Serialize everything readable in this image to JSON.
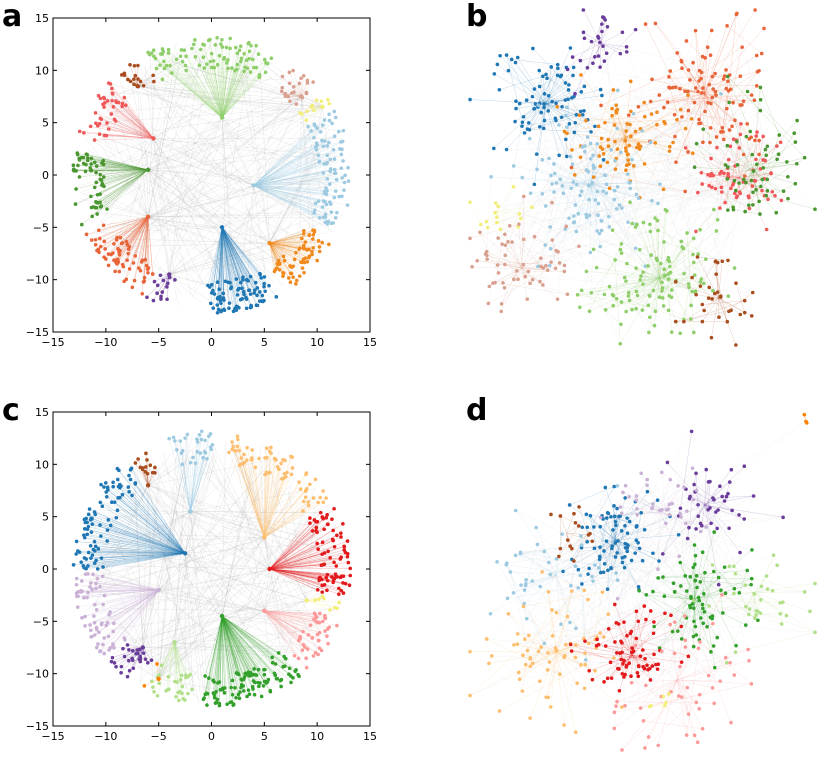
{
  "figure": {
    "panels": [
      {
        "label": "a",
        "kind": "radial-layout"
      },
      {
        "label": "b",
        "kind": "force-layout"
      },
      {
        "label": "c",
        "kind": "radial-layout"
      },
      {
        "label": "d",
        "kind": "force-layout"
      }
    ]
  },
  "chart_data": [
    {
      "type": "scatter",
      "panel": "a",
      "title": "",
      "xlabel": "",
      "ylabel": "",
      "xlim": [
        -15,
        15
      ],
      "ylim": [
        -15,
        15
      ],
      "xticks": [
        -15,
        -10,
        -5,
        0,
        5,
        10,
        15
      ],
      "yticks": [
        -15,
        -10,
        -5,
        0,
        5,
        10,
        15
      ],
      "xtick_labels": [
        "−15",
        "−10",
        "−5",
        "0",
        "5",
        "10",
        "15"
      ],
      "ytick_labels": [
        "−15",
        "−10",
        "−5",
        "0",
        "5",
        "10",
        "15"
      ],
      "grid": false,
      "edge_color": "#999999",
      "communities": [
        {
          "name": "light-green",
          "color": "#8fce6a",
          "hub": [
            1.0,
            5.5
          ],
          "angle_range": [
            62,
            118
          ],
          "nodes": 95
        },
        {
          "name": "tan",
          "color": "#d9a08f",
          "hub": [
            8.5,
            7.5
          ],
          "angle_range": [
            40,
            55
          ],
          "nodes": 25
        },
        {
          "name": "yellow",
          "color": "#f2ee7a",
          "hub": [
            10.5,
            6.5
          ],
          "angle_range": [
            30,
            38
          ],
          "nodes": 12
        },
        {
          "name": "light-blue",
          "color": "#9ecae1",
          "hub": [
            4.0,
            -1.0
          ],
          "angle_range": [
            -25,
            28
          ],
          "nodes": 90
        },
        {
          "name": "orange",
          "color": "#f08a1d",
          "hub": [
            5.5,
            -6.5
          ],
          "angle_range": [
            -58,
            -28
          ],
          "nodes": 65
        },
        {
          "name": "blue",
          "color": "#1f77b4",
          "hub": [
            1.0,
            -5.0
          ],
          "angle_range": [
            -92,
            -62
          ],
          "nodes": 85
        },
        {
          "name": "purple",
          "color": "#6a3d9a",
          "hub": [
            -4.0,
            -9.5
          ],
          "angle_range": [
            -118,
            -108
          ],
          "nodes": 15
        },
        {
          "name": "dark-orange",
          "color": "#e8653a",
          "hub": [
            -6.0,
            -4.0
          ],
          "angle_range": [
            -155,
            -120
          ],
          "nodes": 70
        },
        {
          "name": "dark-green",
          "color": "#4a9630",
          "hub": [
            -6.0,
            0.5
          ],
          "angle_range": [
            -190,
            -158
          ],
          "nodes": 60
        },
        {
          "name": "red",
          "color": "#f0595a",
          "hub": [
            -5.5,
            3.5
          ],
          "angle_range": [
            -225,
            -195
          ],
          "nodes": 40
        },
        {
          "name": "brown",
          "color": "#a94d1f",
          "hub": [
            -7.0,
            8.5
          ],
          "angle_range": [
            -240,
            -228
          ],
          "nodes": 18
        }
      ]
    },
    {
      "type": "network",
      "panel": "b",
      "title": "",
      "edge_color": "#c7c7c7",
      "communities": [
        {
          "name": "blue",
          "color": "#1f77b4",
          "center": [
            0.22,
            0.28
          ],
          "spread": 0.08,
          "nodes": 90
        },
        {
          "name": "purple",
          "color": "#6a3d9a",
          "center": [
            0.38,
            0.1
          ],
          "spread": 0.05,
          "nodes": 30
        },
        {
          "name": "red-orange",
          "color": "#e8653a",
          "center": [
            0.68,
            0.25
          ],
          "spread": 0.1,
          "nodes": 110
        },
        {
          "name": "orange",
          "color": "#f08a1d",
          "center": [
            0.45,
            0.38
          ],
          "spread": 0.08,
          "nodes": 80
        },
        {
          "name": "light-blue",
          "color": "#9ecae1",
          "center": [
            0.35,
            0.52
          ],
          "spread": 0.11,
          "nodes": 110
        },
        {
          "name": "red",
          "color": "#f0595a",
          "center": [
            0.78,
            0.5
          ],
          "spread": 0.07,
          "nodes": 70
        },
        {
          "name": "green",
          "color": "#4a9630",
          "center": [
            0.82,
            0.48
          ],
          "spread": 0.09,
          "nodes": 60
        },
        {
          "name": "yellow",
          "color": "#f2ee7a",
          "center": [
            0.08,
            0.6
          ],
          "spread": 0.05,
          "nodes": 15
        },
        {
          "name": "tan",
          "color": "#d9a08f",
          "center": [
            0.15,
            0.77
          ],
          "spread": 0.08,
          "nodes": 60
        },
        {
          "name": "light-green",
          "color": "#8fce6a",
          "center": [
            0.55,
            0.8
          ],
          "spread": 0.1,
          "nodes": 120
        },
        {
          "name": "brown",
          "color": "#a94d1f",
          "center": [
            0.72,
            0.86
          ],
          "spread": 0.06,
          "nodes": 35
        }
      ]
    },
    {
      "type": "scatter",
      "panel": "c",
      "title": "",
      "xlabel": "",
      "ylabel": "",
      "xlim": [
        -15,
        15
      ],
      "ylim": [
        -15,
        15
      ],
      "xticks": [
        -15,
        -10,
        -5,
        0,
        5,
        10,
        15
      ],
      "yticks": [
        -15,
        -10,
        -5,
        0,
        5,
        10,
        15
      ],
      "xtick_labels": [
        "−15",
        "−10",
        "−5",
        "0",
        "5",
        "10",
        "15"
      ],
      "ytick_labels": [
        "−15",
        "−10",
        "−5",
        "0",
        "5",
        "10",
        "15"
      ],
      "grid": false,
      "edge_color": "#999999",
      "communities": [
        {
          "name": "light-blue",
          "color": "#9ecae1",
          "hub": [
            -2.0,
            5.5
          ],
          "angle_range": [
            88,
            108
          ],
          "nodes": 30
        },
        {
          "name": "light-orange",
          "color": "#fdbf6f",
          "hub": [
            5.0,
            3.0
          ],
          "angle_range": [
            30,
            82
          ],
          "nodes": 70
        },
        {
          "name": "red",
          "color": "#e31a1c",
          "hub": [
            5.5,
            0.0
          ],
          "angle_range": [
            -12,
            28
          ],
          "nodes": 80
        },
        {
          "name": "yellow",
          "color": "#f2ee7a",
          "hub": [
            9.0,
            -3.0
          ],
          "angle_range": [
            -20,
            -14
          ],
          "nodes": 8
        },
        {
          "name": "pink",
          "color": "#fb9a99",
          "hub": [
            5.0,
            -4.0
          ],
          "angle_range": [
            -48,
            -22
          ],
          "nodes": 45
        },
        {
          "name": "green",
          "color": "#33a02c",
          "hub": [
            1.0,
            -4.5
          ],
          "angle_range": [
            -95,
            -50
          ],
          "nodes": 110
        },
        {
          "name": "pale-green",
          "color": "#b2df8a",
          "hub": [
            -3.5,
            -7.0
          ],
          "angle_range": [
            -118,
            -98
          ],
          "nodes": 30
        },
        {
          "name": "orange",
          "color": "#ff7f00",
          "hub": [
            -5.0,
            -10.5
          ],
          "angle_range": [
            -120,
            -119
          ],
          "nodes": 2
        },
        {
          "name": "purple",
          "color": "#6a3d9a",
          "hub": [
            -6.5,
            -7.5
          ],
          "angle_range": [
            -138,
            -122
          ],
          "nodes": 30
        },
        {
          "name": "lavender",
          "color": "#cab2d6",
          "hub": [
            -5.0,
            -2.0
          ],
          "angle_range": [
            -178,
            -140
          ],
          "nodes": 65
        },
        {
          "name": "blue",
          "color": "#1f77b4",
          "hub": [
            -2.5,
            1.5
          ],
          "angle_range": [
            -232,
            -180
          ],
          "nodes": 85
        },
        {
          "name": "brown",
          "color": "#a94d1f",
          "hub": [
            -6.0,
            8.0
          ],
          "angle_range": [
            -242,
            -234
          ],
          "nodes": 14
        }
      ]
    },
    {
      "type": "network",
      "panel": "d",
      "title": "",
      "edge_color": "#c7c7c7",
      "communities": [
        {
          "name": "blue",
          "color": "#1f77b4",
          "center": [
            0.42,
            0.4
          ],
          "spread": 0.07,
          "nodes": 85
        },
        {
          "name": "purple",
          "color": "#6a3d9a",
          "center": [
            0.68,
            0.3
          ],
          "spread": 0.07,
          "nodes": 45
        },
        {
          "name": "lavender",
          "color": "#cab2d6",
          "center": [
            0.55,
            0.32
          ],
          "spread": 0.08,
          "nodes": 40
        },
        {
          "name": "brown",
          "color": "#a94d1f",
          "center": [
            0.28,
            0.38
          ],
          "spread": 0.04,
          "nodes": 15
        },
        {
          "name": "light-blue",
          "color": "#9ecae1",
          "center": [
            0.25,
            0.5
          ],
          "spread": 0.09,
          "nodes": 45
        },
        {
          "name": "green",
          "color": "#33a02c",
          "center": [
            0.65,
            0.57
          ],
          "spread": 0.08,
          "nodes": 75
        },
        {
          "name": "pale-green",
          "color": "#b2df8a",
          "center": [
            0.82,
            0.55
          ],
          "spread": 0.07,
          "nodes": 35
        },
        {
          "name": "light-orange",
          "color": "#fdbf6f",
          "center": [
            0.25,
            0.72
          ],
          "spread": 0.1,
          "nodes": 70
        },
        {
          "name": "red",
          "color": "#e31a1c",
          "center": [
            0.47,
            0.73
          ],
          "spread": 0.07,
          "nodes": 75
        },
        {
          "name": "pink",
          "color": "#fb9a99",
          "center": [
            0.6,
            0.8
          ],
          "spread": 0.1,
          "nodes": 50
        },
        {
          "name": "yellow",
          "color": "#f2ee7a",
          "center": [
            0.55,
            0.88
          ],
          "spread": 0.03,
          "nodes": 6
        },
        {
          "name": "orange",
          "color": "#ff7f00",
          "center": [
            0.97,
            0.05
          ],
          "spread": 0.01,
          "nodes": 3
        }
      ]
    }
  ]
}
